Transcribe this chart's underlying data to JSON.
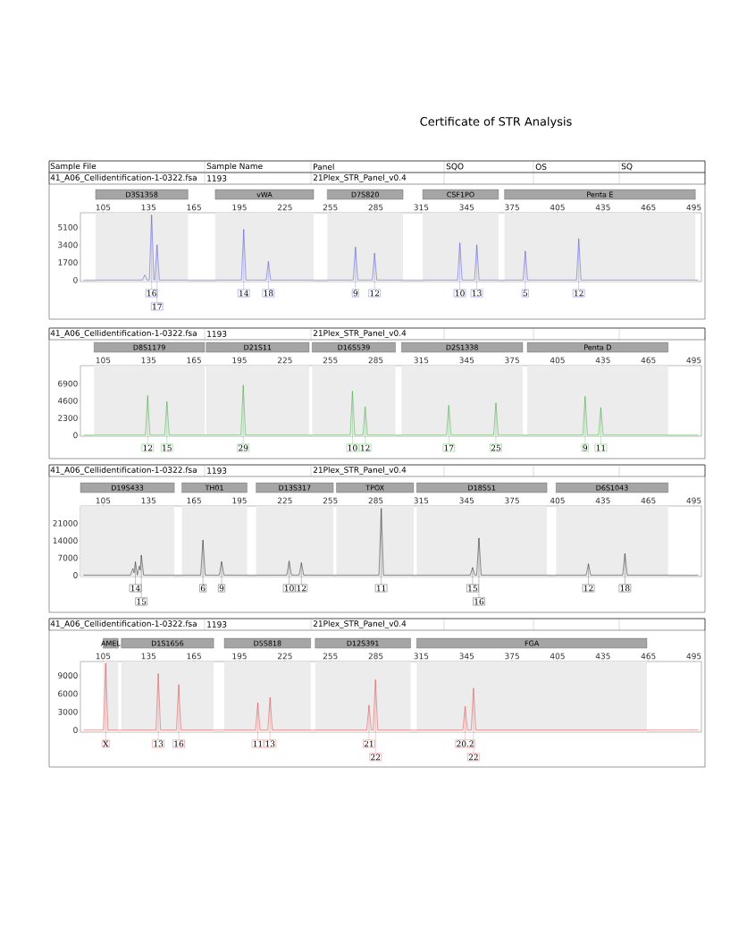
{
  "chart_data": [
    {
      "type": "line",
      "title": "Certificate of STR Analysis",
      "annotations": [
        "Sample File",
        "Sample Name",
        "Panel",
        "SQO",
        "OS",
        "SQ",
        "41_A06_Cellidentification-1-0322.fsa",
        "1193",
        "21Plex_STR_Panel_v0.4",
        {
          "text": "16",
          "x": 137.0,
          "y": 6300
        },
        {
          "text": "17",
          "x": 140.6,
          "y": 3400
        },
        {
          "text": "14",
          "x": 197.8,
          "y": 4900
        },
        {
          "text": "18",
          "x": 214.1,
          "y": 1800
        },
        {
          "text": "9",
          "x": 271.6,
          "y": 3200
        },
        {
          "text": "12",
          "x": 284.2,
          "y": 2600
        },
        {
          "text": "10",
          "x": 340.5,
          "y": 3600
        },
        {
          "text": "13",
          "x": 351.7,
          "y": 3400
        },
        {
          "text": "5",
          "x": 383.7,
          "y": 2800
        },
        {
          "text": "12",
          "x": 419.0,
          "y": 4000
        }
      ],
      "x": [
        92,
        131,
        132.5,
        134,
        135.5,
        137.0,
        138.5,
        139.1,
        140.6,
        142.1,
        196.3,
        197.8,
        199.3,
        212.6,
        214.1,
        215.6,
        270.1,
        271.6,
        273.1,
        282.7,
        284.2,
        285.7,
        339.0,
        340.5,
        342.0,
        350.2,
        351.7,
        353.2,
        382.2,
        383.7,
        385.2,
        417.5,
        419.0,
        420.5,
        498
      ],
      "series": [
        {
          "color": "#5b5bdc",
          "values": [
            0,
            0,
            500,
            0,
            0,
            6300,
            0,
            0,
            3400,
            0,
            0,
            4900,
            0,
            0,
            1800,
            0,
            0,
            3200,
            0,
            0,
            2600,
            0,
            0,
            3600,
            0,
            0,
            3400,
            0,
            0,
            2800,
            0,
            0,
            4000,
            0,
            0
          ]
        }
      ],
      "xlim": [
        90,
        500
      ],
      "ylim": [
        -150,
        6500
      ],
      "xticks": [
        105,
        135,
        165,
        195,
        225,
        255,
        285,
        315,
        345,
        375,
        405,
        435,
        465,
        495
      ],
      "yticks": [
        0,
        1700,
        3400,
        5100
      ],
      "bands": [
        {
          "axis": "x",
          "from": 100,
          "to": 161,
          "label": "D3S1358",
          "color": "#ececec"
        },
        {
          "axis": "x",
          "from": 179,
          "to": 244,
          "label": "vWA",
          "color": "#ececec"
        },
        {
          "axis": "x",
          "from": 253,
          "to": 303,
          "label": "D7S820",
          "color": "#ececec"
        },
        {
          "axis": "x",
          "from": 316,
          "to": 366,
          "label": "CSF1PO",
          "color": "#ececec"
        },
        {
          "axis": "x",
          "from": 370,
          "to": 496,
          "label": "Penta E",
          "color": "#ececec"
        }
      ]
    },
    {
      "type": "line",
      "annotations": [
        "41_A06_Cellidentification-1-0322.fsa",
        "1193",
        "21Plex_STR_Panel_v0.4",
        {
          "text": "12",
          "x": 134.4,
          "y": 5300
        },
        {
          "text": "15",
          "x": 147.1,
          "y": 4500
        },
        {
          "text": "29",
          "x": 197.5,
          "y": 6700
        },
        {
          "text": "10",
          "x": 269.6,
          "y": 5900
        },
        {
          "text": "12",
          "x": 278.0,
          "y": 3800
        },
        {
          "text": "17",
          "x": 333.2,
          "y": 4000
        },
        {
          "text": "25",
          "x": 364.3,
          "y": 4300
        },
        {
          "text": "9",
          "x": 423.2,
          "y": 5200
        },
        {
          "text": "11",
          "x": 433.6,
          "y": 3700
        }
      ],
      "x": [
        92,
        132.9,
        134.4,
        135.9,
        145.6,
        147.1,
        148.6,
        196.0,
        197.5,
        199.0,
        268.1,
        269.6,
        271.1,
        276.5,
        278.0,
        279.5,
        331.7,
        333.2,
        334.7,
        362.8,
        364.3,
        365.8,
        421.7,
        423.2,
        424.7,
        432.1,
        433.6,
        435.1,
        498
      ],
      "series": [
        {
          "color": "#4caf4c",
          "values": [
            0,
            0,
            5300,
            0,
            0,
            4500,
            0,
            0,
            6700,
            0,
            0,
            5900,
            0,
            0,
            3800,
            0,
            0,
            4000,
            0,
            0,
            4300,
            0,
            0,
            5200,
            0,
            0,
            3700,
            0,
            0
          ]
        }
      ],
      "xlim": [
        90,
        500
      ],
      "ylim": [
        -150,
        9300
      ],
      "xticks": [
        105,
        135,
        165,
        195,
        225,
        255,
        285,
        315,
        345,
        375,
        405,
        435,
        465,
        495
      ],
      "yticks": [
        0,
        2300,
        4600,
        6900
      ],
      "bands": [
        {
          "axis": "x",
          "from": 99,
          "to": 172,
          "label": "D8S1179",
          "color": "#ececec"
        },
        {
          "axis": "x",
          "from": 173,
          "to": 241,
          "label": "D21S11",
          "color": "#ececec"
        },
        {
          "axis": "x",
          "from": 243,
          "to": 298,
          "label": "D16S539",
          "color": "#ececec"
        },
        {
          "axis": "x",
          "from": 302,
          "to": 382,
          "label": "D2S1338",
          "color": "#ececec"
        },
        {
          "axis": "x",
          "from": 385,
          "to": 478,
          "label": "Penta D",
          "color": "#ececec"
        }
      ]
    },
    {
      "type": "line",
      "annotations": [
        "41_A06_Cellidentification-1-0322.fsa",
        "1193",
        "21Plex_STR_Panel_v0.4",
        {
          "text": "14",
          "x": 126.3,
          "y": 5400
        },
        {
          "text": "15",
          "x": 130.2,
          "y": 8100
        },
        {
          "text": "6",
          "x": 170.9,
          "y": 14200
        },
        {
          "text": "9",
          "x": 183.2,
          "y": 5500
        },
        {
          "text": "10",
          "x": 227.8,
          "y": 5700
        },
        {
          "text": "12",
          "x": 235.9,
          "y": 5000
        },
        {
          "text": "11",
          "x": 288.6,
          "y": 27000
        },
        {
          "text": "15",
          "x": 348.9,
          "y": 3100
        },
        {
          "text": "16",
          "x": 353.1,
          "y": 15000
        },
        {
          "text": "12",
          "x": 425.4,
          "y": 4600
        },
        {
          "text": "18",
          "x": 449.5,
          "y": 8800
        }
      ],
      "x": [
        92,
        123.1,
        124.6,
        125.4,
        126.3,
        127.6,
        128.9,
        129.5,
        130.2,
        131.7,
        169.4,
        170.9,
        172.4,
        181.7,
        183.2,
        184.7,
        226.3,
        227.8,
        229.3,
        234.4,
        235.9,
        237.4,
        287.1,
        288.6,
        290.1,
        347.4,
        348.9,
        350.4,
        351.6,
        353.1,
        354.6,
        423.9,
        425.4,
        426.9,
        448.0,
        449.5,
        451.0,
        498
      ],
      "series": [
        {
          "color": "#333333",
          "values": [
            0,
            0,
            2700,
            900,
            5400,
            0,
            3700,
            2000,
            8100,
            0,
            0,
            14200,
            0,
            0,
            5500,
            0,
            0,
            5700,
            0,
            0,
            5000,
            0,
            0,
            27000,
            0,
            0,
            3100,
            0,
            0,
            15000,
            0,
            0,
            4600,
            0,
            0,
            8800,
            0,
            0
          ]
        }
      ],
      "xlim": [
        90,
        500
      ],
      "ylim": [
        -600,
        28000
      ],
      "xticks": [
        105,
        135,
        165,
        195,
        225,
        255,
        285,
        315,
        345,
        375,
        405,
        435,
        465,
        495
      ],
      "yticks": [
        0,
        7000,
        14000,
        21000
      ],
      "bands": [
        {
          "axis": "x",
          "from": 90,
          "to": 152,
          "label": "D19S433",
          "color": "#ececec"
        },
        {
          "axis": "x",
          "from": 157,
          "to": 200,
          "label": "TH01",
          "color": "#ececec"
        },
        {
          "axis": "x",
          "from": 206,
          "to": 257,
          "label": "D13S317",
          "color": "#ececec"
        },
        {
          "axis": "x",
          "from": 259,
          "to": 310,
          "label": "TPOX",
          "color": "#ececec"
        },
        {
          "axis": "x",
          "from": 312,
          "to": 398,
          "label": "D18S51",
          "color": "#ececec"
        },
        {
          "axis": "x",
          "from": 404,
          "to": 478,
          "label": "D6S1043",
          "color": "#ececec"
        }
      ]
    },
    {
      "type": "line",
      "annotations": [
        "41_A06_Cellidentification-1-0322.fsa",
        "1193",
        "21Plex_STR_Panel_v0.4",
        {
          "text": "X",
          "x": 106.7,
          "y": 11000
        },
        {
          "text": "13",
          "x": 141.4,
          "y": 9300
        },
        {
          "text": "16",
          "x": 154.9,
          "y": 7500
        },
        {
          "text": "11",
          "x": 207.1,
          "y": 4500
        },
        {
          "text": "13",
          "x": 215.2,
          "y": 5400
        },
        {
          "text": "21",
          "x": 280.5,
          "y": 4100
        },
        {
          "text": "22",
          "x": 284.8,
          "y": 8300
        },
        {
          "text": "20.2",
          "x": 344.0,
          "y": 3900
        },
        {
          "text": "22",
          "x": 349.5,
          "y": 6900
        }
      ],
      "x": [
        92,
        105.2,
        106.7,
        108.2,
        139.9,
        141.4,
        142.9,
        153.4,
        154.9,
        156.4,
        205.6,
        207.1,
        208.6,
        213.7,
        215.2,
        216.7,
        279.0,
        280.5,
        282.0,
        283.3,
        284.8,
        286.3,
        342.5,
        344.0,
        345.5,
        348.0,
        349.5,
        351.0,
        498
      ],
      "series": [
        {
          "color": "#e05555",
          "values": [
            0,
            0,
            11000,
            0,
            0,
            9300,
            0,
            0,
            7500,
            0,
            0,
            4500,
            0,
            0,
            5400,
            0,
            0,
            4100,
            0,
            0,
            8300,
            0,
            0,
            3900,
            0,
            0,
            6900,
            0,
            0
          ]
        }
      ],
      "xlim": [
        90,
        500
      ],
      "ylim": [
        -350,
        11300
      ],
      "xticks": [
        105,
        135,
        165,
        195,
        225,
        255,
        285,
        315,
        345,
        375,
        405,
        435,
        465,
        495
      ],
      "yticks": [
        0,
        3000,
        6000,
        9000
      ],
      "bands": [
        {
          "axis": "x",
          "from": 105,
          "to": 115,
          "label": "AMEL",
          "color": "#ececec"
        },
        {
          "axis": "x",
          "from": 117,
          "to": 178,
          "label": "D1S1656",
          "color": "#ececec"
        },
        {
          "axis": "x",
          "from": 185,
          "to": 242,
          "label": "D5S818",
          "color": "#ececec"
        },
        {
          "axis": "x",
          "from": 245,
          "to": 308,
          "label": "D12S391",
          "color": "#ececec"
        },
        {
          "axis": "x",
          "from": 312,
          "to": 464,
          "label": "FGA",
          "color": "#ececec"
        }
      ]
    }
  ]
}
